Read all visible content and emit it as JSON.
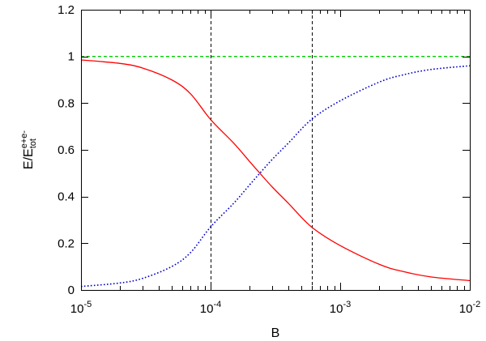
{
  "chart_data": {
    "type": "line",
    "xlabel": "B",
    "ylabel": {
      "base": "E/E",
      "superscript": "e+e-",
      "subscript": "tot"
    },
    "x_scale": "log",
    "xlim": [
      1e-05,
      0.01
    ],
    "ylim": [
      0,
      1.2
    ],
    "x_ticks": [
      {
        "value": 1e-05,
        "base": "10",
        "exp": "-5"
      },
      {
        "value": 0.0001,
        "base": "10",
        "exp": "-4"
      },
      {
        "value": 0.001,
        "base": "10",
        "exp": "-3"
      },
      {
        "value": 0.01,
        "base": "10",
        "exp": "-2"
      }
    ],
    "y_ticks": [
      {
        "value": 0,
        "label": "0"
      },
      {
        "value": 0.2,
        "label": "0.2"
      },
      {
        "value": 0.4,
        "label": "0.4"
      },
      {
        "value": 0.6,
        "label": "0.6"
      },
      {
        "value": 0.8,
        "label": "0.8"
      },
      {
        "value": 1,
        "label": "1"
      },
      {
        "value": 1.2,
        "label": "1.2"
      }
    ],
    "grid": false,
    "legend": "none",
    "vertical_lines": [
      {
        "x": 0.0001,
        "color": "#000000",
        "style": "dashed"
      },
      {
        "x": 0.0006,
        "color": "#000000",
        "style": "dashed"
      }
    ],
    "series": [
      {
        "color": "#ff0000",
        "style": "solid",
        "points": [
          {
            "x": 1e-05,
            "y": 0.985
          },
          {
            "x": 2e-05,
            "y": 0.97
          },
          {
            "x": 3e-05,
            "y": 0.95
          },
          {
            "x": 5e-05,
            "y": 0.9
          },
          {
            "x": 7e-05,
            "y": 0.84
          },
          {
            "x": 0.0001,
            "y": 0.73
          },
          {
            "x": 0.00015,
            "y": 0.63
          },
          {
            "x": 0.0002,
            "y": 0.55
          },
          {
            "x": 0.00024,
            "y": 0.5
          },
          {
            "x": 0.0003,
            "y": 0.44
          },
          {
            "x": 0.0004,
            "y": 0.37
          },
          {
            "x": 0.0006,
            "y": 0.27
          },
          {
            "x": 0.001,
            "y": 0.19
          },
          {
            "x": 0.002,
            "y": 0.11
          },
          {
            "x": 0.003,
            "y": 0.08
          },
          {
            "x": 0.005,
            "y": 0.056
          },
          {
            "x": 0.01,
            "y": 0.04
          }
        ]
      },
      {
        "color": "#0000cc",
        "style": "dotted",
        "points": [
          {
            "x": 1e-05,
            "y": 0.015
          },
          {
            "x": 2e-05,
            "y": 0.03
          },
          {
            "x": 3e-05,
            "y": 0.05
          },
          {
            "x": 5e-05,
            "y": 0.1
          },
          {
            "x": 7e-05,
            "y": 0.16
          },
          {
            "x": 0.0001,
            "y": 0.27
          },
          {
            "x": 0.00015,
            "y": 0.37
          },
          {
            "x": 0.0002,
            "y": 0.45
          },
          {
            "x": 0.00024,
            "y": 0.5
          },
          {
            "x": 0.0003,
            "y": 0.56
          },
          {
            "x": 0.0004,
            "y": 0.63
          },
          {
            "x": 0.0006,
            "y": 0.73
          },
          {
            "x": 0.001,
            "y": 0.81
          },
          {
            "x": 0.002,
            "y": 0.89
          },
          {
            "x": 0.003,
            "y": 0.92
          },
          {
            "x": 0.005,
            "y": 0.944
          },
          {
            "x": 0.01,
            "y": 0.96
          }
        ]
      },
      {
        "color": "#00cc00",
        "style": "dashed",
        "points": [
          {
            "x": 1e-05,
            "y": 1
          },
          {
            "x": 0.01,
            "y": 1
          }
        ]
      }
    ]
  }
}
